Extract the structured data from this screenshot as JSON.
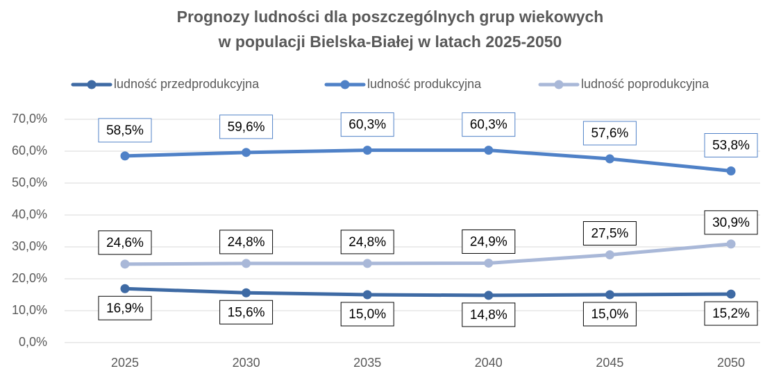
{
  "chart_data": {
    "type": "line",
    "title": [
      "Prognozy ludności dla poszczególnych grup wiekowych",
      "w populacji Bielska-Białej w latach 2025-2050"
    ],
    "categories": [
      "2025",
      "2030",
      "2035",
      "2040",
      "2045",
      "2050"
    ],
    "series": [
      {
        "name": "ludność przedprodukcyjna",
        "color": "#3e6aa4",
        "values": [
          16.9,
          15.6,
          15.0,
          14.8,
          15.0,
          15.2
        ],
        "value_labels": [
          "16,9%",
          "15,6%",
          "15,0%",
          "14,8%",
          "15,0%",
          "15,2%"
        ]
      },
      {
        "name": "ludność produkcyjna",
        "color": "#4f81c7",
        "values": [
          58.5,
          59.6,
          60.3,
          60.3,
          57.6,
          53.8
        ],
        "value_labels": [
          "58,5%",
          "59,6%",
          "60,3%",
          "60,3%",
          "57,6%",
          "53,8%"
        ]
      },
      {
        "name": "ludność poprodukcyjna",
        "color": "#a9b8d8",
        "values": [
          24.6,
          24.8,
          24.8,
          24.9,
          27.5,
          30.9
        ],
        "value_labels": [
          "24,6%",
          "24,8%",
          "24,8%",
          "24,9%",
          "27,5%",
          "30,9%"
        ]
      }
    ],
    "ylim": [
      0,
      70
    ],
    "yticks": [
      {
        "value": 0,
        "label": "0,0%"
      },
      {
        "value": 10,
        "label": "10,0%"
      },
      {
        "value": 20,
        "label": "20,0%"
      },
      {
        "value": 30,
        "label": "30,0%"
      },
      {
        "value": 40,
        "label": "40,0%"
      },
      {
        "value": 50,
        "label": "50,0%"
      },
      {
        "value": 60,
        "label": "60,0%"
      },
      {
        "value": 70,
        "label": "70,0%"
      }
    ],
    "grid": true,
    "legend": "top"
  }
}
